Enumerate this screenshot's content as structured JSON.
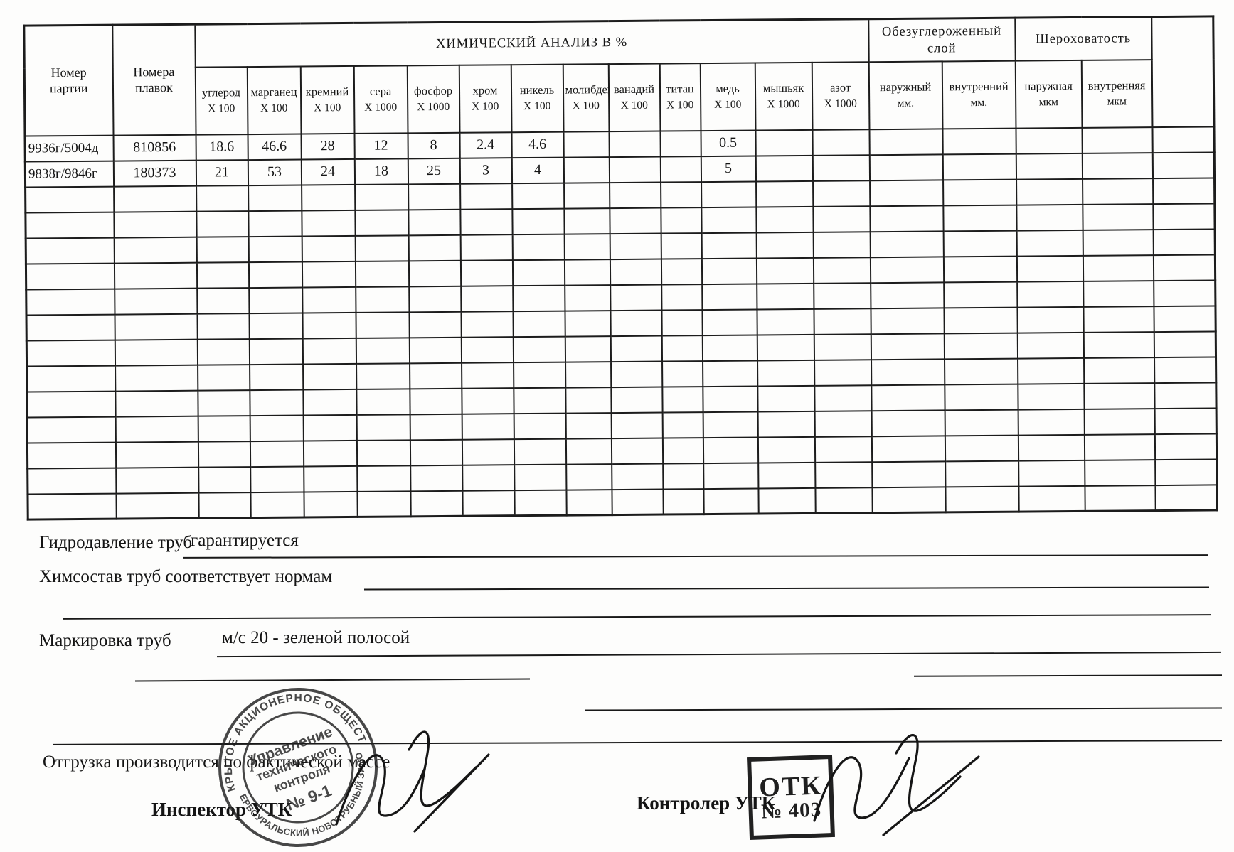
{
  "table": {
    "header": {
      "batch_number": "Номер\nпартии",
      "heat_numbers": "Номера\nплавок",
      "chem_group_title": "ХИМИЧЕСКИЙ АНАЛИЗ  В   %",
      "chem_cols": [
        {
          "name": "углерод",
          "mult": "X 100"
        },
        {
          "name": "марганец",
          "mult": "X 100"
        },
        {
          "name": "кремний",
          "mult": "X 100"
        },
        {
          "name": "сера",
          "mult": "X 1000"
        },
        {
          "name": "фосфор",
          "mult": "X 1000"
        },
        {
          "name": "хром",
          "mult": "X 100"
        },
        {
          "name": "никель",
          "mult": "X 100"
        },
        {
          "name": "молибден",
          "mult": "X 100"
        },
        {
          "name": "ванадий",
          "mult": "X 100"
        },
        {
          "name": "титан",
          "mult": "X 100"
        },
        {
          "name": "медь",
          "mult": "X 100"
        },
        {
          "name": "мышьяк",
          "mult": "X 1000"
        },
        {
          "name": "азот",
          "mult": "X 1000"
        }
      ],
      "decarb_group_title": "Обезуглероженный\nслой",
      "decarb_cols": [
        {
          "name": "наружный",
          "unit": "мм."
        },
        {
          "name": "внутренний",
          "unit": "мм."
        }
      ],
      "rough_group_title": "Шероховатость",
      "rough_cols": [
        {
          "name": "наружная",
          "unit": "мкм"
        },
        {
          "name": "внутренняя",
          "unit": "мкм"
        }
      ]
    },
    "rows": [
      [
        "9936г/5004д",
        "810856",
        "18.6",
        "46.6",
        "28",
        "12",
        "8",
        "2.4",
        "4.6",
        "",
        "",
        "",
        "0.5",
        "",
        "",
        "",
        "",
        "",
        "",
        ""
      ],
      [
        "9838г/9846г",
        "180373",
        "21",
        "53",
        "24",
        "18",
        "25",
        "3",
        "4",
        "",
        "",
        "",
        "5",
        "",
        "",
        "",
        "",
        "",
        "",
        ""
      ]
    ],
    "empty_row_count": 13
  },
  "footer": {
    "hydro_label": "Гидродавление труб",
    "hydro_value": "гарантируется",
    "chem_label": "Химсостав труб соответствует нормам",
    "marking_label": "Маркировка труб",
    "marking_value": "м/с 20 - зеленой полосой",
    "shipping_note": "Отгрузка производится по фактической массе",
    "inspector_label": "Инспектор УТК",
    "controller_label": "Контролер УТК"
  },
  "stamps": {
    "round_seal": {
      "arc_top": "ОТКРЫТОЕ АКЦИОНЕРНОЕ ОБЩЕСТВО",
      "arc_bottom": "• ПЕРВОУРАЛЬСКИЙ НОВОТРУБНЫЙ ЗАВОД •",
      "line1": "Управление",
      "line2": "технического",
      "line3": "контроля",
      "line4": "№ 9-1"
    },
    "otk_stamp": {
      "line1": "ОТК",
      "line2": "№ 403"
    }
  },
  "colors": {
    "ink": "#1c1c1c",
    "paper": "#fdfdfc"
  }
}
